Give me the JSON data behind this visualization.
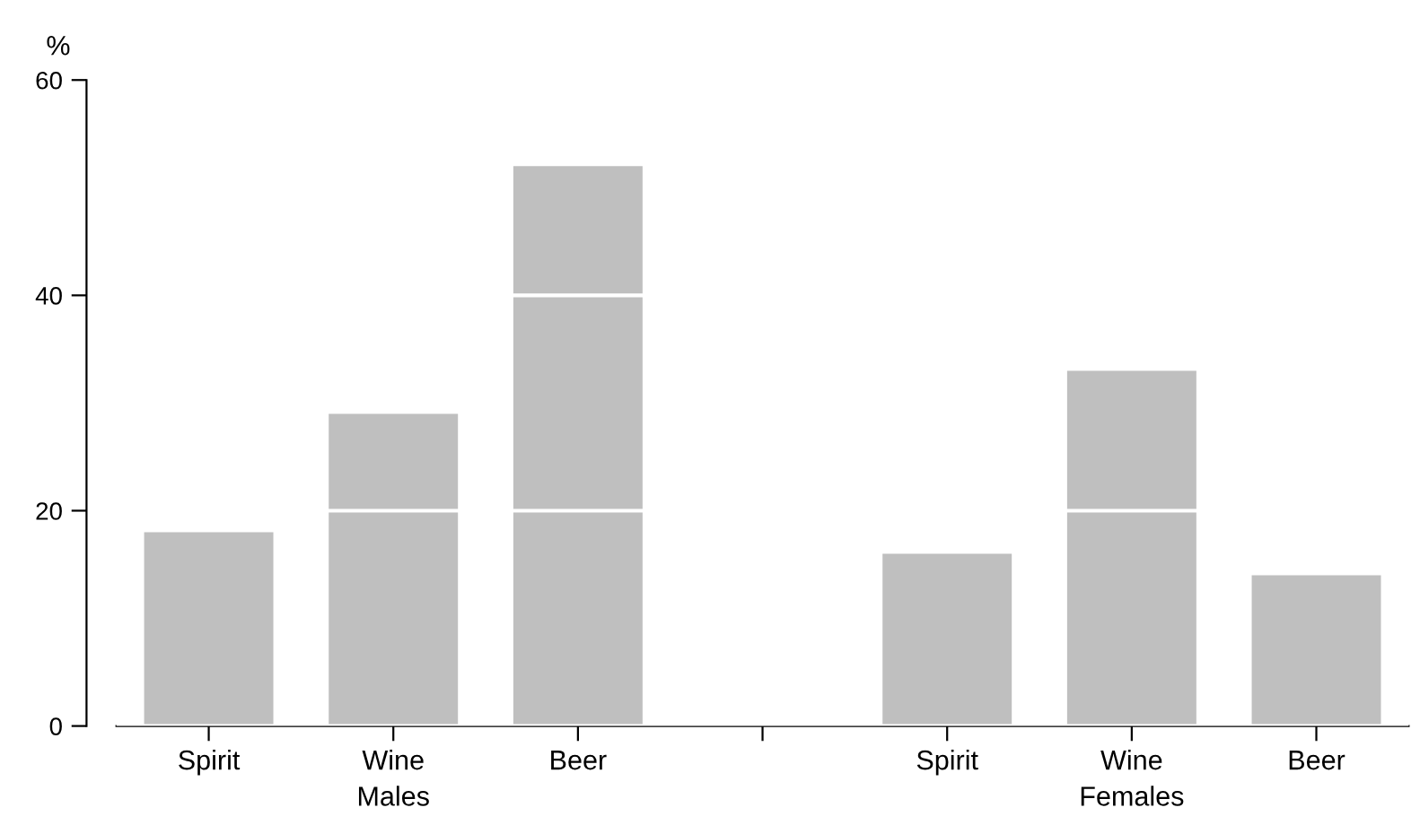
{
  "chart_data": {
    "type": "bar",
    "ylabel": "%",
    "categories": [
      "Spirit",
      "Wine",
      "Beer",
      null,
      "Spirit",
      "Wine",
      "Beer"
    ],
    "values": [
      18,
      29,
      52,
      null,
      16,
      33,
      14
    ],
    "color": "#bfbfbf",
    "ylim": [
      0,
      60
    ],
    "yticks": [
      0,
      20,
      40,
      60
    ],
    "grid": "y",
    "annotations": [
      "Males",
      "Females"
    ]
  }
}
